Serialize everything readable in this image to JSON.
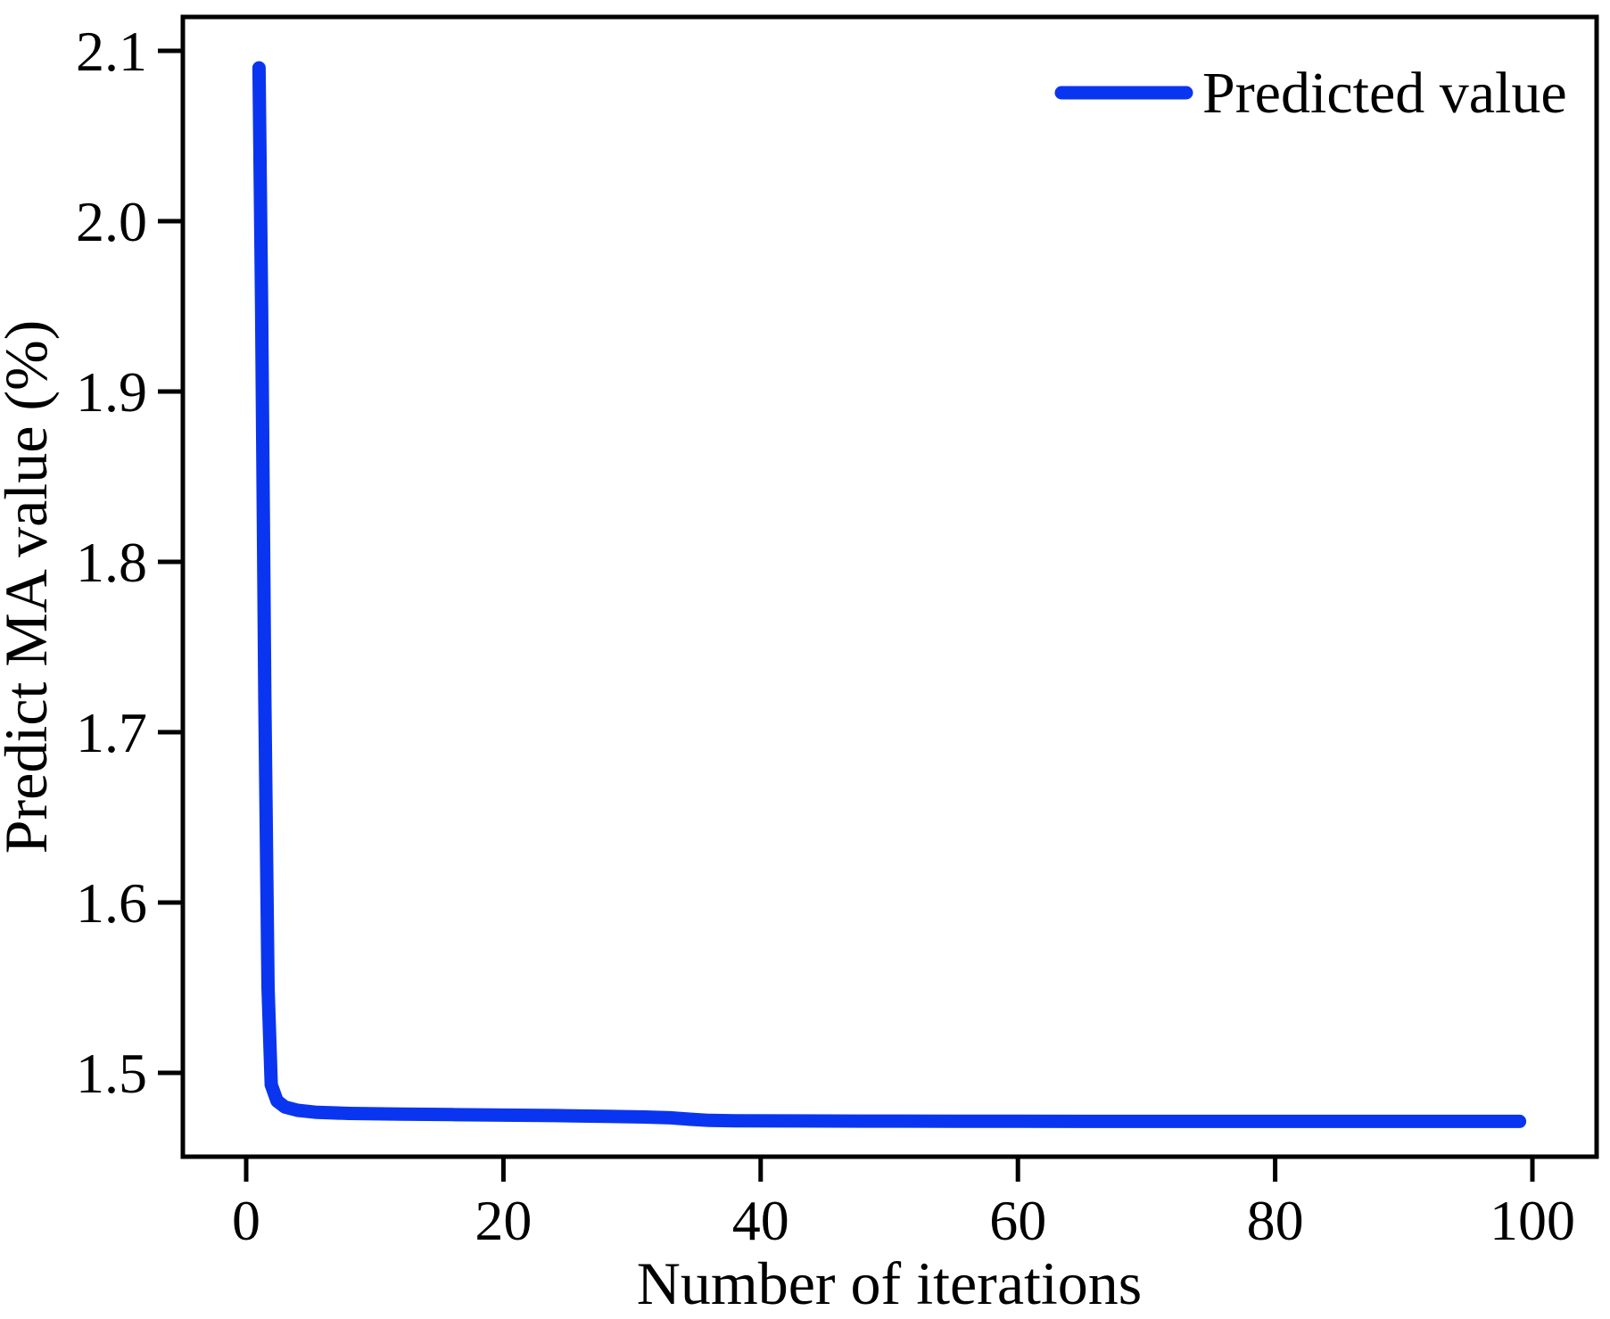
{
  "figure": {
    "background": "#ffffff",
    "axis_color": "#000000",
    "line_color": "#0a35f0"
  },
  "chart_data": {
    "type": "line",
    "title": "",
    "xlabel": "Number of iterations",
    "ylabel": "Predict MA value (%)",
    "xlim": [
      -5,
      105
    ],
    "ylim": [
      1.45,
      2.12
    ],
    "grid": false,
    "x_tick_values": [
      0,
      20,
      40,
      60,
      80,
      100
    ],
    "x_tick_labels": [
      "0",
      "20",
      "40",
      "60",
      "80",
      "100"
    ],
    "y_tick_values": [
      1.5,
      1.6,
      1.7,
      1.8,
      1.9,
      2.0,
      2.1
    ],
    "y_tick_labels": [
      "1.5",
      "1.6",
      "1.7",
      "1.8",
      "1.9",
      "2.0",
      "2.1"
    ],
    "legend": {
      "position": "top-right",
      "entries": [
        {
          "label": "Predicted value",
          "color": "#0a35f0"
        }
      ]
    },
    "series": [
      {
        "name": "Predicted value",
        "color": "#0a35f0",
        "points": [
          [
            1,
            2.09
          ],
          [
            1.2,
            1.95
          ],
          [
            1.45,
            1.72
          ],
          [
            1.7,
            1.55
          ],
          [
            1.95,
            1.493
          ],
          [
            2.4,
            1.4835
          ],
          [
            3,
            1.48
          ],
          [
            4,
            1.478
          ],
          [
            5.5,
            1.4768
          ],
          [
            8,
            1.4762
          ],
          [
            12,
            1.4758
          ],
          [
            16,
            1.4755
          ],
          [
            20,
            1.4752
          ],
          [
            24,
            1.4749
          ],
          [
            28,
            1.4745
          ],
          [
            31,
            1.4741
          ],
          [
            33,
            1.4736
          ],
          [
            34.5,
            1.4728
          ],
          [
            36,
            1.4721
          ],
          [
            38,
            1.4719
          ],
          [
            42,
            1.4718
          ],
          [
            48,
            1.4717
          ],
          [
            55,
            1.4716
          ],
          [
            65,
            1.4715
          ],
          [
            80,
            1.4715
          ],
          [
            99,
            1.4715
          ]
        ]
      }
    ]
  }
}
